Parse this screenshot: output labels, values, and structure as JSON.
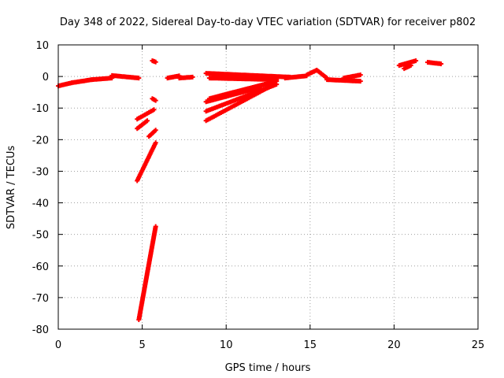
{
  "chart_data": {
    "type": "scatter",
    "title": "Day 348 of 2022, Sidereal Day-to-day VTEC variation (SDTVAR) for receiver p802",
    "xlabel": "GPS time / hours",
    "ylabel": "SDTVAR / TECUs",
    "xlim": [
      0,
      25
    ],
    "ylim": [
      -80,
      10
    ],
    "xticks": [
      0,
      5,
      10,
      15,
      20,
      25
    ],
    "xtick_labels": [
      "0",
      "5",
      "10",
      "15",
      "20",
      "25"
    ],
    "yticks": [
      10,
      0,
      -10,
      -20,
      -30,
      -40,
      -50,
      -60,
      -70,
      -80
    ],
    "ytick_labels": [
      "10",
      "0",
      "-10",
      "-20",
      "-30",
      "-40",
      "-50",
      "-60",
      "-70",
      "-80"
    ],
    "grid": true,
    "marker": "+",
    "series": [
      {
        "name": "SDTVAR",
        "color": "#ff0000",
        "segments": [
          {
            "x0": 0.0,
            "y0": -3.0,
            "x1": 0.8,
            "y1": -2.0
          },
          {
            "x0": 0.8,
            "y0": -2.0,
            "x1": 2.0,
            "y1": -1.0
          },
          {
            "x0": 2.0,
            "y0": -1.0,
            "x1": 3.2,
            "y1": -0.5
          },
          {
            "x0": 3.2,
            "y0": 0.3,
            "x1": 4.8,
            "y1": -0.5
          },
          {
            "x0": 5.6,
            "y0": 5.0,
            "x1": 5.8,
            "y1": 4.6
          },
          {
            "x0": 5.6,
            "y0": -7.0,
            "x1": 5.8,
            "y1": -7.6
          },
          {
            "x0": 4.7,
            "y0": -13.5,
            "x1": 5.7,
            "y1": -10.5
          },
          {
            "x0": 4.7,
            "y0": -16.5,
            "x1": 5.3,
            "y1": -14.0
          },
          {
            "x0": 5.4,
            "y0": -19.0,
            "x1": 5.8,
            "y1": -17.0
          },
          {
            "x0": 4.7,
            "y0": -33.0,
            "x1": 5.8,
            "y1": -21.0
          },
          {
            "x0": 4.8,
            "y0": -77.0,
            "x1": 5.8,
            "y1": -47.5
          },
          {
            "x0": 6.5,
            "y0": -0.5,
            "x1": 7.2,
            "y1": 0.2
          },
          {
            "x0": 7.2,
            "y0": -0.5,
            "x1": 8.0,
            "y1": -0.2
          },
          {
            "x0": 8.8,
            "y0": 1.0,
            "x1": 13.8,
            "y1": -0.2
          },
          {
            "x0": 9.0,
            "y0": -0.5,
            "x1": 13.0,
            "y1": -1.0
          },
          {
            "x0": 9.0,
            "y0": -7.0,
            "x1": 13.0,
            "y1": -1.5
          },
          {
            "x0": 8.8,
            "y0": -8.0,
            "x1": 12.0,
            "y1": -3.5
          },
          {
            "x0": 8.8,
            "y0": -11.0,
            "x1": 13.0,
            "y1": -2.5
          },
          {
            "x0": 8.8,
            "y0": -14.0,
            "x1": 12.5,
            "y1": -3.5
          },
          {
            "x0": 13.5,
            "y0": -0.5,
            "x1": 14.8,
            "y1": 0.2
          },
          {
            "x0": 14.8,
            "y0": 0.5,
            "x1": 15.4,
            "y1": 2.0
          },
          {
            "x0": 15.4,
            "y0": 2.0,
            "x1": 16.0,
            "y1": -0.5
          },
          {
            "x0": 16.0,
            "y0": -1.0,
            "x1": 18.0,
            "y1": -1.5
          },
          {
            "x0": 17.0,
            "y0": -0.5,
            "x1": 18.0,
            "y1": 0.5
          },
          {
            "x0": 20.3,
            "y0": 3.5,
            "x1": 21.3,
            "y1": 5.0
          },
          {
            "x0": 20.6,
            "y0": 2.5,
            "x1": 21.0,
            "y1": 3.5
          },
          {
            "x0": 22.0,
            "y0": 4.5,
            "x1": 22.8,
            "y1": 4.0
          }
        ]
      }
    ]
  }
}
